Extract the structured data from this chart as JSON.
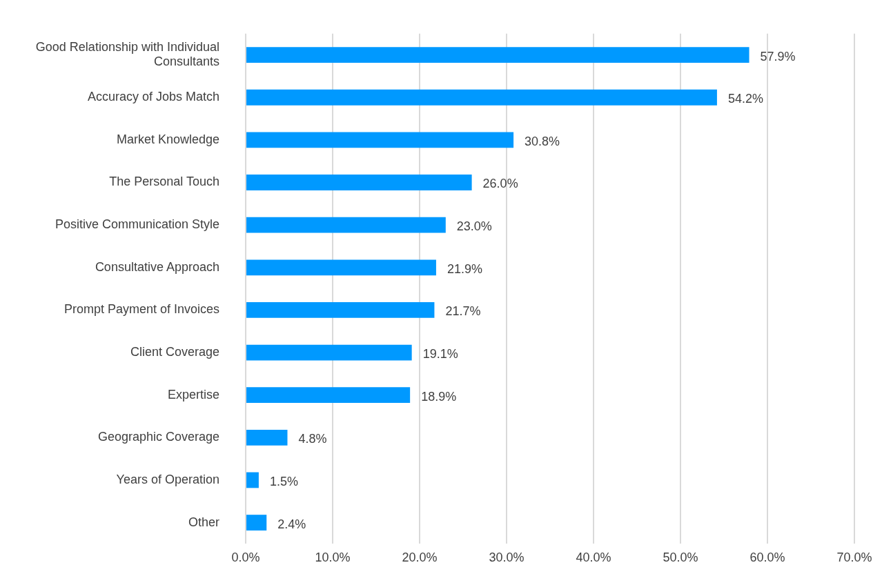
{
  "chart_data": {
    "type": "bar",
    "orientation": "horizontal",
    "categories": [
      "Good Relationship with Individual Consultants",
      "Accuracy of Jobs Match",
      "Market Knowledge",
      "The Personal Touch",
      "Positive Communication Style",
      "Consultative Approach",
      "Prompt Payment of Invoices",
      "Client Coverage",
      "Expertise",
      "Geographic Coverage",
      "Years of Operation",
      "Other"
    ],
    "values": [
      57.9,
      54.2,
      30.8,
      26.0,
      23.0,
      21.9,
      21.7,
      19.1,
      18.9,
      4.8,
      1.5,
      2.4
    ],
    "value_labels": [
      "57.9%",
      "54.2%",
      "30.8%",
      "26.0%",
      "23.0%",
      "21.9%",
      "21.7%",
      "19.1%",
      "18.9%",
      "4.8%",
      "1.5%",
      "2.4%"
    ],
    "color": "#0099ff",
    "xlim": [
      0,
      70
    ],
    "xticks": [
      {
        "value": 0,
        "label": "0.0%"
      },
      {
        "value": 10,
        "label": "10.0%"
      },
      {
        "value": 20,
        "label": "20.0%"
      },
      {
        "value": 30,
        "label": "30.0%"
      },
      {
        "value": 40,
        "label": "40.0%"
      },
      {
        "value": 50,
        "label": "50.0%"
      },
      {
        "value": 60,
        "label": "60.0%"
      },
      {
        "value": 70,
        "label": "70.0%"
      }
    ],
    "grid": "x",
    "legend": false
  }
}
